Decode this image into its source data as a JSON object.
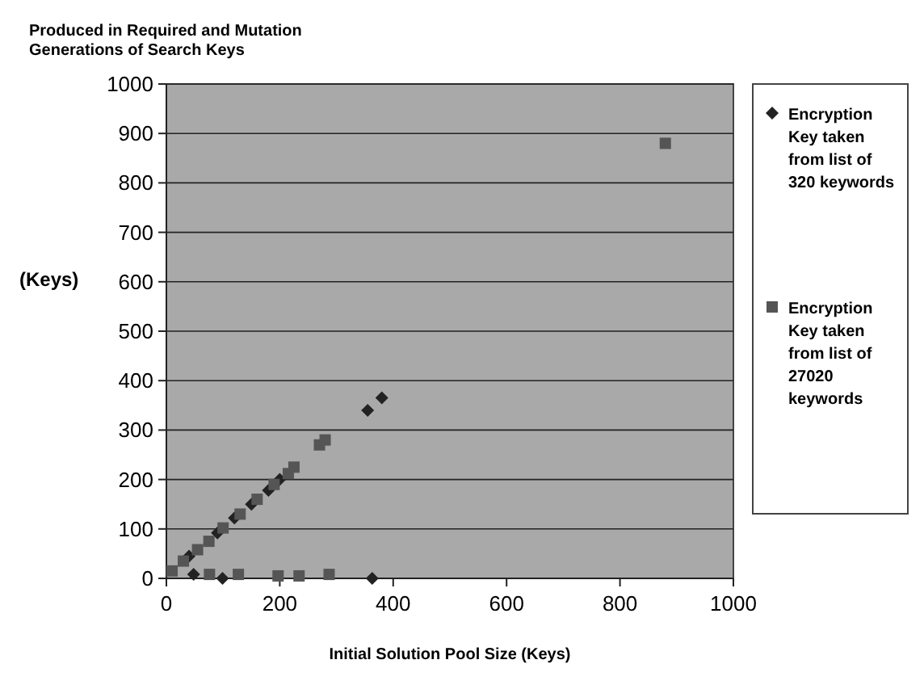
{
  "chart_data": {
    "type": "scatter",
    "title": "Produced in Required and Mutation Generations of Search Keys",
    "xlabel": "Initial Solution Pool Size (Keys)",
    "ylabel": "(Keys)",
    "xlim": [
      0,
      1000
    ],
    "ylim": [
      0,
      1000
    ],
    "xticks": [
      0,
      200,
      400,
      600,
      800,
      1000
    ],
    "yticks": [
      0,
      100,
      200,
      300,
      400,
      500,
      600,
      700,
      800,
      900,
      1000
    ],
    "grid": "y",
    "legend": "right",
    "series": [
      {
        "name": "Encryption Key taken from list of 320 keywords",
        "color": "#222222",
        "marker": "diamond",
        "x": [
          40,
          90,
          120,
          150,
          180,
          200,
          355,
          380,
          48,
          99,
          363
        ],
        "values": [
          45,
          92,
          122,
          150,
          178,
          200,
          340,
          365,
          8,
          0,
          0
        ]
      },
      {
        "name": "Encryption Key taken from list of 27020 keywords",
        "color": "#555555",
        "marker": "square",
        "x": [
          10,
          30,
          55,
          75,
          100,
          130,
          160,
          190,
          215,
          225,
          270,
          280,
          880,
          76,
          127,
          197,
          234,
          287
        ],
        "values": [
          15,
          35,
          58,
          75,
          102,
          130,
          160,
          190,
          212,
          225,
          270,
          280,
          880,
          8,
          8,
          5,
          5,
          8
        ]
      }
    ]
  }
}
